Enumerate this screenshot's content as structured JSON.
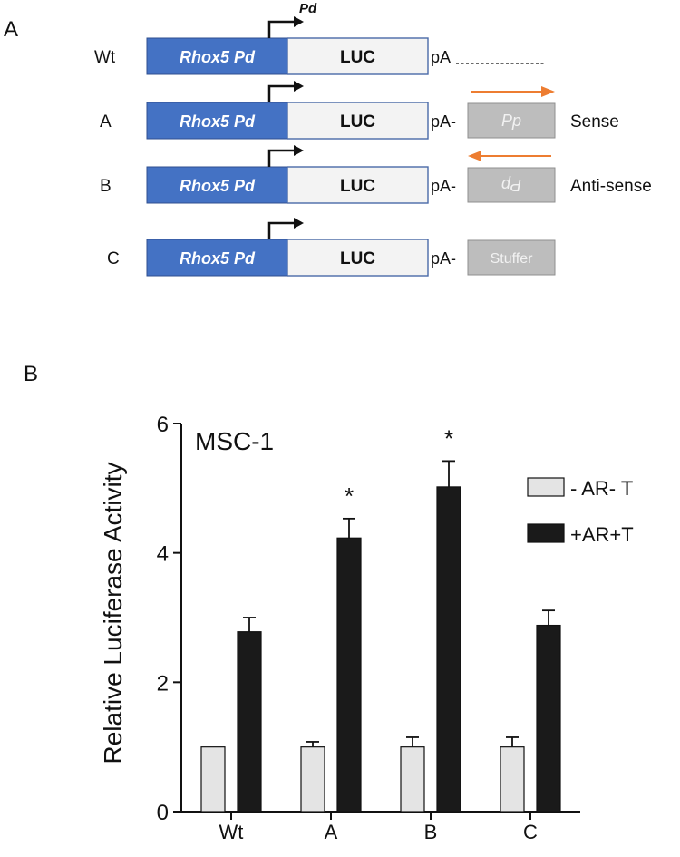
{
  "panel_a": {
    "label": "A",
    "top_promoter_label": "Pd",
    "rows": [
      {
        "name": "Wt",
        "promoter": "Rhox5 Pd",
        "reporter": "LUC",
        "polya": "pA",
        "insert": "",
        "insert_mode": "none",
        "arrow_dir": "",
        "orientation": ""
      },
      {
        "name": "A",
        "promoter": "Rhox5 Pd",
        "reporter": "LUC",
        "polya": "pA-",
        "insert": "Pp",
        "insert_mode": "normal",
        "arrow_dir": "right",
        "orientation": "Sense"
      },
      {
        "name": "B",
        "promoter": "Rhox5 Pd",
        "reporter": "LUC",
        "polya": "pA-",
        "insert": "Pp",
        "insert_mode": "flipped",
        "arrow_dir": "left",
        "orientation": "Anti-sense"
      },
      {
        "name": "C",
        "promoter": "Rhox5 Pd",
        "reporter": "LUC",
        "polya": "pA-",
        "insert": "Stuffer",
        "insert_mode": "normal",
        "arrow_dir": "",
        "orientation": ""
      }
    ],
    "colors": {
      "promoter": "#4472c4",
      "reporter": "#f3f3f3",
      "insert": "#bdbdbd",
      "insert_text": "#f2f2f2",
      "arrow": "#ed7d31",
      "tss_arrow": "#111111"
    }
  },
  "panel_b": {
    "label": "B"
  },
  "chart_data": {
    "type": "bar",
    "title": "MSC-1",
    "xlabel": "",
    "ylabel": "Relative Luciferase Activity",
    "categories": [
      "Wt",
      "A",
      "B",
      "C"
    ],
    "ylim": [
      0,
      6
    ],
    "yticks": [
      0,
      2,
      4,
      6
    ],
    "series": [
      {
        "name": "- AR- T",
        "color": "#e4e4e4",
        "values": [
          1.0,
          1.0,
          1.0,
          1.0
        ],
        "errors": [
          0.0,
          0.08,
          0.15,
          0.15
        ]
      },
      {
        "name": "+AR+T",
        "color": "#1a1a1a",
        "values": [
          2.78,
          4.23,
          5.02,
          2.88
        ],
        "errors": [
          0.22,
          0.3,
          0.4,
          0.23
        ]
      }
    ],
    "significance": [
      "",
      "*",
      "*",
      ""
    ],
    "legend_position": "right",
    "grid": false
  }
}
